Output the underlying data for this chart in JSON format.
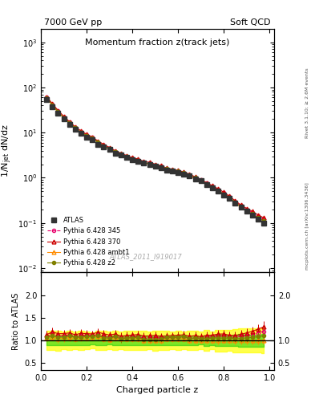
{
  "title_main": "Momentum fraction z(track jets)",
  "header_left": "7000 GeV pp",
  "header_right": "Soft QCD",
  "xlabel": "Charged particle z",
  "ylabel_main": "1/N$_{jet}$ dN/dz",
  "ylabel_ratio": "Ratio to ATLAS",
  "watermark": "ATLAS_2011_I919017",
  "right_label": "Rivet 3.1.10; ≥ 2.6M events",
  "right_label2": "mcplots.cern.ch [arXiv:1306.3436]",
  "atlas_x": [
    0.025,
    0.05,
    0.075,
    0.1,
    0.125,
    0.15,
    0.175,
    0.2,
    0.225,
    0.25,
    0.275,
    0.3,
    0.325,
    0.35,
    0.375,
    0.4,
    0.425,
    0.45,
    0.475,
    0.5,
    0.525,
    0.55,
    0.575,
    0.6,
    0.625,
    0.65,
    0.675,
    0.7,
    0.725,
    0.75,
    0.775,
    0.8,
    0.825,
    0.85,
    0.875,
    0.9,
    0.925,
    0.95,
    0.975
  ],
  "atlas_y": [
    55,
    37,
    27,
    20,
    15,
    12,
    9.5,
    8,
    7,
    5.5,
    4.8,
    4.2,
    3.5,
    3.2,
    2.8,
    2.5,
    2.3,
    2.1,
    2.0,
    1.8,
    1.7,
    1.5,
    1.4,
    1.3,
    1.2,
    1.1,
    0.95,
    0.85,
    0.7,
    0.6,
    0.5,
    0.42,
    0.35,
    0.28,
    0.22,
    0.18,
    0.15,
    0.12,
    0.1
  ],
  "atlas_yerr": [
    3,
    2,
    1.5,
    1,
    0.8,
    0.6,
    0.5,
    0.4,
    0.3,
    0.3,
    0.25,
    0.2,
    0.18,
    0.16,
    0.15,
    0.13,
    0.12,
    0.11,
    0.1,
    0.1,
    0.09,
    0.08,
    0.07,
    0.07,
    0.06,
    0.06,
    0.05,
    0.04,
    0.04,
    0.03,
    0.03,
    0.025,
    0.02,
    0.018,
    0.015,
    0.012,
    0.01,
    0.008,
    0.007
  ],
  "p345_x": [
    0.025,
    0.05,
    0.075,
    0.1,
    0.125,
    0.15,
    0.175,
    0.2,
    0.225,
    0.25,
    0.275,
    0.3,
    0.325,
    0.35,
    0.375,
    0.4,
    0.425,
    0.45,
    0.475,
    0.5,
    0.525,
    0.55,
    0.575,
    0.6,
    0.625,
    0.65,
    0.675,
    0.7,
    0.725,
    0.75,
    0.775,
    0.8,
    0.825,
    0.85,
    0.875,
    0.9,
    0.925,
    0.95,
    0.975
  ],
  "p345_y": [
    60,
    42,
    30,
    22,
    17,
    13,
    10.5,
    9,
    7.8,
    6.2,
    5.2,
    4.5,
    3.8,
    3.4,
    3.0,
    2.7,
    2.5,
    2.2,
    2.1,
    1.9,
    1.8,
    1.6,
    1.5,
    1.4,
    1.3,
    1.15,
    1.0,
    0.9,
    0.75,
    0.65,
    0.55,
    0.46,
    0.38,
    0.3,
    0.24,
    0.2,
    0.17,
    0.14,
    0.12
  ],
  "p345_yerr": [
    3,
    2,
    1.5,
    1,
    0.8,
    0.6,
    0.5,
    0.4,
    0.35,
    0.3,
    0.25,
    0.22,
    0.2,
    0.18,
    0.15,
    0.14,
    0.12,
    0.11,
    0.11,
    0.1,
    0.09,
    0.08,
    0.08,
    0.07,
    0.07,
    0.06,
    0.05,
    0.05,
    0.04,
    0.04,
    0.03,
    0.025,
    0.02,
    0.018,
    0.015,
    0.013,
    0.01,
    0.009,
    0.008
  ],
  "p370_x": [
    0.025,
    0.05,
    0.075,
    0.1,
    0.125,
    0.15,
    0.175,
    0.2,
    0.225,
    0.25,
    0.275,
    0.3,
    0.325,
    0.35,
    0.375,
    0.4,
    0.425,
    0.45,
    0.475,
    0.5,
    0.525,
    0.55,
    0.575,
    0.6,
    0.625,
    0.65,
    0.675,
    0.7,
    0.725,
    0.75,
    0.775,
    0.8,
    0.825,
    0.85,
    0.875,
    0.9,
    0.925,
    0.95,
    0.975
  ],
  "p370_y": [
    62,
    44,
    31,
    23,
    17.5,
    13.5,
    11,
    9.2,
    8.0,
    6.5,
    5.5,
    4.7,
    4.0,
    3.5,
    3.1,
    2.8,
    2.6,
    2.3,
    2.2,
    2.0,
    1.85,
    1.65,
    1.55,
    1.45,
    1.35,
    1.2,
    1.05,
    0.92,
    0.78,
    0.67,
    0.57,
    0.48,
    0.39,
    0.31,
    0.25,
    0.21,
    0.18,
    0.15,
    0.13
  ],
  "p370_yerr": [
    3,
    2.5,
    1.8,
    1.2,
    0.9,
    0.7,
    0.55,
    0.45,
    0.4,
    0.33,
    0.28,
    0.24,
    0.2,
    0.18,
    0.16,
    0.14,
    0.13,
    0.12,
    0.11,
    0.1,
    0.09,
    0.08,
    0.08,
    0.07,
    0.07,
    0.06,
    0.06,
    0.05,
    0.04,
    0.04,
    0.03,
    0.025,
    0.02,
    0.018,
    0.015,
    0.013,
    0.011,
    0.009,
    0.008
  ],
  "pambt_x": [
    0.025,
    0.05,
    0.075,
    0.1,
    0.125,
    0.15,
    0.175,
    0.2,
    0.225,
    0.25,
    0.275,
    0.3,
    0.325,
    0.35,
    0.375,
    0.4,
    0.425,
    0.45,
    0.475,
    0.5,
    0.525,
    0.55,
    0.575,
    0.6,
    0.625,
    0.65,
    0.675,
    0.7,
    0.725,
    0.75,
    0.775,
    0.8,
    0.825,
    0.85,
    0.875,
    0.9,
    0.925,
    0.95,
    0.975
  ],
  "pambt_y": [
    58,
    40,
    28,
    21,
    16,
    12.5,
    10,
    8.5,
    7.5,
    6.0,
    5.0,
    4.3,
    3.7,
    3.3,
    2.9,
    2.6,
    2.4,
    2.1,
    2.0,
    1.8,
    1.7,
    1.55,
    1.45,
    1.35,
    1.25,
    1.1,
    0.95,
    0.85,
    0.7,
    0.6,
    0.5,
    0.42,
    0.35,
    0.28,
    0.22,
    0.18,
    0.15,
    0.12,
    0.1
  ],
  "pambt_yerr": [
    3,
    2,
    1.5,
    1.1,
    0.8,
    0.65,
    0.5,
    0.42,
    0.37,
    0.3,
    0.25,
    0.22,
    0.19,
    0.17,
    0.15,
    0.13,
    0.12,
    0.11,
    0.1,
    0.09,
    0.085,
    0.078,
    0.073,
    0.068,
    0.063,
    0.055,
    0.048,
    0.043,
    0.035,
    0.03,
    0.025,
    0.021,
    0.0175,
    0.014,
    0.011,
    0.009,
    0.0075,
    0.006,
    0.005
  ],
  "pz2_x": [
    0.025,
    0.05,
    0.075,
    0.1,
    0.125,
    0.15,
    0.175,
    0.2,
    0.225,
    0.25,
    0.275,
    0.3,
    0.325,
    0.35,
    0.375,
    0.4,
    0.425,
    0.45,
    0.475,
    0.5,
    0.525,
    0.55,
    0.575,
    0.6,
    0.625,
    0.65,
    0.675,
    0.7,
    0.725,
    0.75,
    0.775,
    0.8,
    0.825,
    0.85,
    0.875,
    0.9,
    0.925,
    0.95,
    0.975
  ],
  "pz2_y": [
    59,
    41,
    29,
    21.5,
    16.5,
    12.8,
    10.2,
    8.7,
    7.6,
    6.1,
    5.1,
    4.4,
    3.8,
    3.3,
    2.95,
    2.65,
    2.45,
    2.15,
    2.05,
    1.85,
    1.75,
    1.6,
    1.5,
    1.4,
    1.3,
    1.15,
    1.0,
    0.88,
    0.73,
    0.63,
    0.53,
    0.44,
    0.37,
    0.29,
    0.23,
    0.19,
    0.16,
    0.13,
    0.11
  ],
  "pz2_yerr": [
    3,
    2,
    1.5,
    1.1,
    0.85,
    0.64,
    0.51,
    0.44,
    0.38,
    0.31,
    0.26,
    0.22,
    0.19,
    0.17,
    0.15,
    0.13,
    0.12,
    0.11,
    0.1,
    0.09,
    0.088,
    0.08,
    0.075,
    0.07,
    0.065,
    0.058,
    0.05,
    0.044,
    0.037,
    0.032,
    0.027,
    0.022,
    0.019,
    0.015,
    0.012,
    0.01,
    0.008,
    0.007,
    0.006
  ],
  "color_atlas": "#333333",
  "color_p345": "#e8006b",
  "color_p370": "#cc0000",
  "color_pambt": "#ff8c00",
  "color_pz2": "#808000",
  "band_inner_color": "#00cc00",
  "band_outer_color": "#ffff00",
  "band_inner_alpha": 0.5,
  "band_outer_alpha": 0.5,
  "ylim_main": [
    0.008,
    2000
  ],
  "ylim_ratio": [
    0.35,
    2.5
  ],
  "xlim": [
    0.0,
    1.02
  ]
}
